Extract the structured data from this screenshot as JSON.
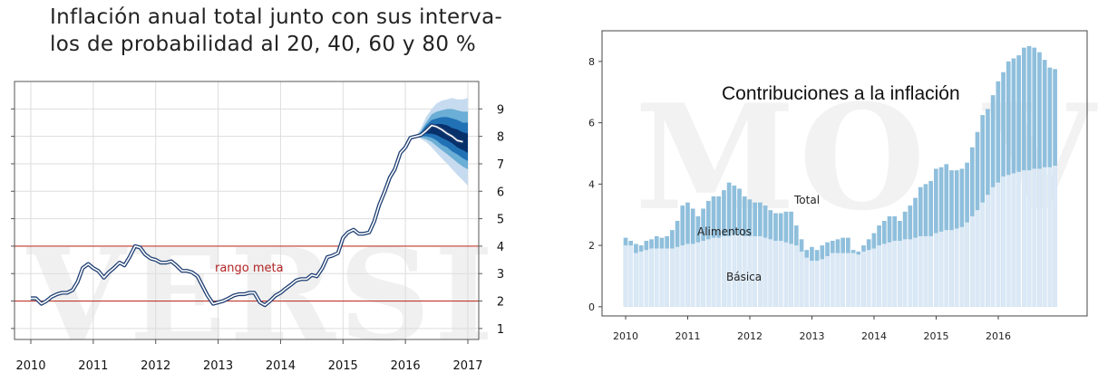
{
  "left_chart": {
    "title_line1": "Inflación anual total junto con sus interva-",
    "title_line2": "los de probabilidad al 20, 40, 60 y 80 %",
    "annotation": "rango meta",
    "watermark": "VERSI"
  },
  "right_chart": {
    "title": "Contribuciones a la inflación",
    "label_total": "Total",
    "label_alimentos": "Alimentos",
    "label_basica": "Básica",
    "watermark": "MO VE"
  },
  "chart_data": [
    {
      "type": "line",
      "title": "Inflación anual total junto con sus intervalos de probabilidad al 20, 40, 60 y 80 %",
      "x_range": [
        2010,
        2017
      ],
      "y_range": [
        0.6,
        10.0
      ],
      "x_ticks": [
        "2010",
        "2011",
        "2012",
        "2013",
        "2014",
        "2015",
        "2016",
        "2017"
      ],
      "y_ticks": [
        "1",
        "2",
        "3",
        "4",
        "5",
        "6",
        "7",
        "8",
        "9"
      ],
      "target_range": [
        2,
        4
      ],
      "series": [
        {
          "x": [
            2010.0,
            2010.08,
            2010.17,
            2010.25,
            2010.33,
            2010.42,
            2010.5,
            2010.58,
            2010.67,
            2010.75,
            2010.83,
            2010.92,
            2011.0,
            2011.08,
            2011.17,
            2011.25,
            2011.33,
            2011.42,
            2011.5,
            2011.58,
            2011.67,
            2011.75,
            2011.83,
            2011.92,
            2012.0,
            2012.08,
            2012.17,
            2012.25,
            2012.33,
            2012.42,
            2012.5,
            2012.58,
            2012.67,
            2012.75,
            2012.83,
            2012.92,
            2013.0,
            2013.08,
            2013.17,
            2013.25,
            2013.33,
            2013.42,
            2013.5,
            2013.58,
            2013.67,
            2013.75,
            2013.83,
            2013.92,
            2014.0,
            2014.08,
            2014.17,
            2014.25,
            2014.33,
            2014.42,
            2014.5,
            2014.58,
            2014.67,
            2014.75,
            2014.83,
            2014.92,
            2015.0,
            2015.08,
            2015.17,
            2015.25,
            2015.33,
            2015.42,
            2015.5,
            2015.58,
            2015.67,
            2015.75,
            2015.83,
            2015.92,
            2016.0,
            2016.08,
            2016.17,
            2016.25,
            2016.33,
            2016.42,
            2016.5,
            2016.58,
            2016.67,
            2016.75,
            2016.83,
            2016.92
          ],
          "y": [
            2.1,
            2.1,
            1.9,
            2.0,
            2.15,
            2.25,
            2.3,
            2.3,
            2.4,
            2.7,
            3.2,
            3.35,
            3.2,
            3.1,
            2.85,
            3.05,
            3.2,
            3.4,
            3.3,
            3.6,
            4.0,
            3.95,
            3.7,
            3.55,
            3.5,
            3.4,
            3.4,
            3.45,
            3.3,
            3.1,
            3.1,
            3.05,
            2.9,
            2.55,
            2.2,
            1.9,
            1.95,
            2.0,
            2.1,
            2.2,
            2.25,
            2.25,
            2.3,
            2.3,
            1.95,
            1.85,
            2.0,
            2.2,
            2.3,
            2.45,
            2.6,
            2.75,
            2.8,
            2.8,
            2.95,
            2.9,
            3.2,
            3.6,
            3.65,
            3.75,
            4.3,
            4.5,
            4.6,
            4.45,
            4.45,
            4.5,
            4.9,
            5.5,
            6.0,
            6.5,
            6.8,
            7.4,
            7.6,
            7.95,
            8.0,
            8.05,
            8.2,
            8.4,
            8.35,
            8.25,
            8.1,
            8.0,
            7.85,
            7.8
          ]
        }
      ],
      "fan_chart": {
        "x": [
          2016.17,
          2016.25,
          2016.33,
          2016.42,
          2016.5,
          2016.58,
          2016.67,
          2016.75,
          2016.83,
          2016.92,
          2017.0
        ],
        "band80_lower": [
          8.0,
          7.9,
          7.8,
          7.6,
          7.4,
          7.2,
          7.0,
          6.8,
          6.6,
          6.4,
          6.2
        ],
        "band80_upper": [
          8.0,
          8.3,
          8.7,
          9.0,
          9.2,
          9.3,
          9.35,
          9.4,
          9.35,
          9.35,
          9.4
        ],
        "band60_lower": [
          8.0,
          7.95,
          7.9,
          7.8,
          7.65,
          7.5,
          7.35,
          7.2,
          7.05,
          6.9,
          6.8
        ],
        "band60_upper": [
          8.0,
          8.2,
          8.5,
          8.8,
          8.9,
          8.95,
          9.0,
          9.0,
          8.95,
          8.9,
          8.9
        ],
        "band40_lower": [
          8.0,
          8.0,
          8.0,
          7.95,
          7.85,
          7.7,
          7.6,
          7.45,
          7.35,
          7.2,
          7.1
        ],
        "band40_upper": [
          8.0,
          8.15,
          8.4,
          8.6,
          8.65,
          8.7,
          8.7,
          8.65,
          8.6,
          8.5,
          8.5
        ],
        "band20_lower": [
          8.0,
          8.05,
          8.1,
          8.1,
          8.05,
          7.95,
          7.85,
          7.75,
          7.6,
          7.5,
          7.4
        ],
        "band20_upper": [
          8.0,
          8.1,
          8.3,
          8.4,
          8.45,
          8.45,
          8.4,
          8.3,
          8.25,
          8.15,
          8.1
        ]
      }
    },
    {
      "type": "bar",
      "title": "Contribuciones a la inflación",
      "x_range": [
        2009.6,
        2017.0
      ],
      "y_range": [
        -0.3,
        9.0
      ],
      "x_ticks": [
        "2010",
        "2011",
        "2012",
        "2013",
        "2014",
        "2015",
        "2016"
      ],
      "y_ticks": [
        "0",
        "2",
        "4",
        "6",
        "8"
      ],
      "bar_start": 2010.0,
      "bar_step": 0.0833,
      "series": [
        {
          "name": "Básica",
          "values": [
            2.0,
            2.0,
            1.75,
            1.8,
            1.85,
            1.9,
            1.9,
            1.9,
            1.9,
            1.9,
            1.95,
            2.0,
            2.05,
            2.05,
            2.1,
            2.15,
            2.2,
            2.25,
            2.25,
            2.3,
            2.3,
            2.35,
            2.35,
            2.3,
            2.3,
            2.3,
            2.3,
            2.25,
            2.2,
            2.15,
            2.15,
            2.1,
            2.05,
            2.0,
            1.8,
            1.6,
            1.5,
            1.5,
            1.55,
            1.65,
            1.75,
            1.75,
            1.75,
            1.75,
            1.75,
            1.7,
            1.8,
            1.85,
            1.9,
            2.0,
            2.05,
            2.1,
            2.15,
            2.15,
            2.2,
            2.2,
            2.25,
            2.3,
            2.3,
            2.3,
            2.4,
            2.45,
            2.5,
            2.5,
            2.55,
            2.6,
            2.75,
            2.95,
            3.15,
            3.4,
            3.65,
            3.9,
            4.05,
            4.25,
            4.3,
            4.35,
            4.4,
            4.45,
            4.45,
            4.5,
            4.5,
            4.55,
            4.55,
            4.6
          ]
        },
        {
          "name": "Total",
          "values": [
            2.25,
            2.15,
            2.05,
            2.0,
            2.15,
            2.2,
            2.3,
            2.25,
            2.3,
            2.5,
            2.8,
            3.3,
            3.4,
            3.2,
            2.95,
            3.2,
            3.45,
            3.6,
            3.6,
            3.8,
            4.05,
            3.95,
            3.85,
            3.6,
            3.5,
            3.4,
            3.4,
            3.3,
            3.15,
            3.05,
            3.05,
            3.1,
            3.1,
            2.65,
            2.2,
            1.85,
            1.95,
            1.85,
            2.0,
            2.1,
            2.15,
            2.2,
            2.25,
            2.25,
            1.85,
            1.8,
            2.0,
            2.2,
            2.4,
            2.65,
            2.8,
            2.95,
            2.95,
            2.8,
            3.1,
            3.3,
            3.55,
            3.9,
            4.0,
            4.1,
            4.5,
            4.55,
            4.65,
            4.45,
            4.45,
            4.5,
            4.7,
            5.2,
            5.7,
            6.25,
            6.45,
            6.9,
            7.35,
            7.65,
            8.0,
            8.1,
            8.2,
            8.45,
            8.5,
            8.45,
            8.3,
            8.05,
            7.8,
            7.75
          ]
        }
      ]
    }
  ]
}
